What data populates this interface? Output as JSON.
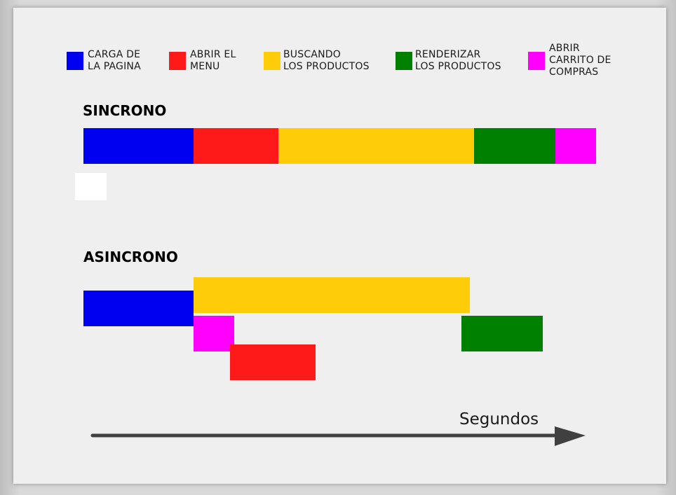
{
  "legend": [
    {
      "key": "carga",
      "label": "CARGA DE\nLA PAGINA",
      "color": "#0000f0"
    },
    {
      "key": "menu",
      "label": "ABRIR EL\nMENU",
      "color": "#ff1a1a"
    },
    {
      "key": "buscando",
      "label": "BUSCANDO\nLOS PRODUCTOS",
      "color": "#ffcc0a"
    },
    {
      "key": "renderizar",
      "label": "RENDERIZAR\nLOS PRODUCTOS",
      "color": "#008000"
    },
    {
      "key": "carrito",
      "label": "ABRIR\nCARRITO DE\nCOMPRAS",
      "color": "#ff00ff"
    }
  ],
  "sync": {
    "title": "SINCRONO",
    "tasks": [
      {
        "key": "carga",
        "start": 0,
        "end": 2.7,
        "lane": 0
      },
      {
        "key": "menu",
        "start": 2.7,
        "end": 4.8,
        "lane": 0
      },
      {
        "key": "buscando",
        "start": 4.8,
        "end": 9.6,
        "lane": 0
      },
      {
        "key": "renderizar",
        "start": 9.6,
        "end": 11.6,
        "lane": 0
      },
      {
        "key": "carrito",
        "start": 11.6,
        "end": 12.6,
        "lane": 0
      }
    ]
  },
  "async": {
    "title": "ASINCRONO",
    "tasks": [
      {
        "key": "buscando",
        "start": 2.7,
        "end": 9.5,
        "lane": 0
      },
      {
        "key": "carga",
        "start": 0,
        "end": 2.7,
        "lane": 1
      },
      {
        "key": "carrito",
        "start": 2.7,
        "end": 3.7,
        "lane": 2
      },
      {
        "key": "renderizar",
        "start": 9.3,
        "end": 11.3,
        "lane": 2
      },
      {
        "key": "menu",
        "start": 3.6,
        "end": 5.7,
        "lane": 3
      }
    ]
  },
  "axis": {
    "label": "Segundos",
    "color": "#404040"
  }
}
